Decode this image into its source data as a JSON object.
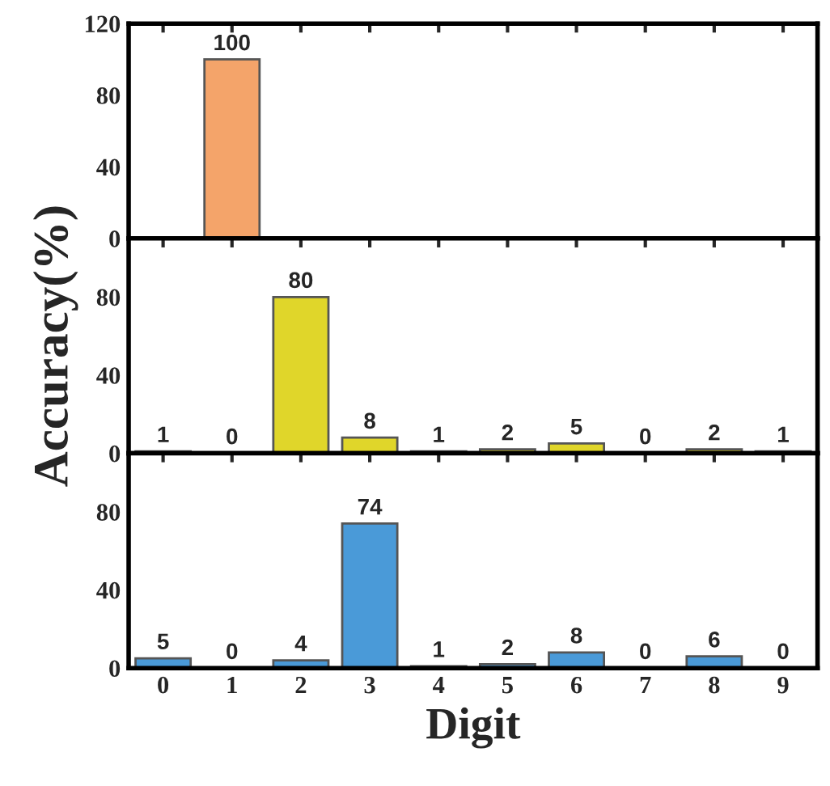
{
  "chart_data": [
    {
      "type": "bar",
      "categories": [
        "0",
        "1",
        "2",
        "3",
        "4",
        "5",
        "6",
        "7",
        "8",
        "9"
      ],
      "values": [
        null,
        100,
        null,
        null,
        null,
        null,
        null,
        null,
        null,
        null
      ],
      "color": "#f4a46a",
      "ylim": [
        0,
        120
      ],
      "yticks": [
        0,
        40,
        80,
        120
      ],
      "data_labels": true,
      "tick_labels": "y"
    },
    {
      "type": "bar",
      "categories": [
        "0",
        "1",
        "2",
        "3",
        "4",
        "5",
        "6",
        "7",
        "8",
        "9"
      ],
      "values": [
        1,
        0,
        80,
        8,
        1,
        2,
        5,
        0,
        2,
        1
      ],
      "color": "#e0d62a",
      "ylim": [
        0,
        110
      ],
      "yticks": [
        0,
        40,
        80
      ],
      "data_labels": true,
      "tick_labels": "y",
      "ylabel": "Accuracy(%)"
    },
    {
      "type": "bar",
      "categories": [
        "0",
        "1",
        "2",
        "3",
        "4",
        "5",
        "6",
        "7",
        "8",
        "9"
      ],
      "values": [
        5,
        0,
        4,
        74,
        1,
        2,
        8,
        0,
        6,
        0
      ],
      "color": "#4a9ad8",
      "ylim": [
        0,
        110
      ],
      "yticks": [
        0,
        40,
        80
      ],
      "data_labels": true,
      "xlabel": "Digit"
    }
  ]
}
